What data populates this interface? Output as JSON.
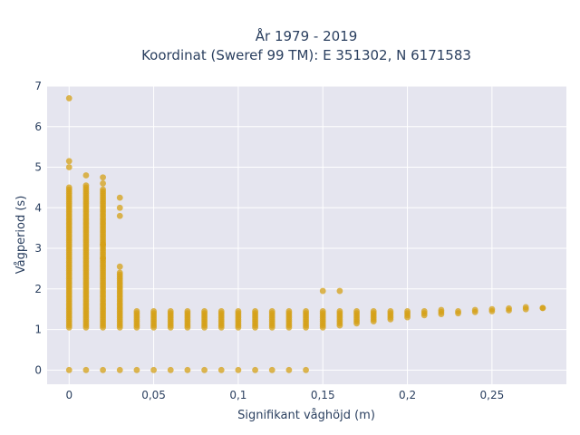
{
  "chart_data": {
    "type": "scatter",
    "title": "År 1979 - 2019",
    "subtitle": "Koordinat (Sweref 99 TM): E 351302, N 6171583",
    "xlabel": "Signifikant våghöjd (m)",
    "ylabel": "Vågperiod (s)",
    "xlim": [
      -0.013,
      0.294
    ],
    "ylim": [
      -0.35,
      7.0
    ],
    "xticks": [
      0,
      0.05,
      0.1,
      0.15,
      0.2,
      0.25
    ],
    "xtick_labels": [
      "0",
      "0,05",
      "0,1",
      "0,15",
      "0,2",
      "0,25"
    ],
    "yticks": [
      0,
      1,
      2,
      3,
      4,
      5,
      6,
      7
    ],
    "ytick_labels": [
      "0",
      "1",
      "2",
      "3",
      "4",
      "5",
      "6",
      "7"
    ],
    "grid": true,
    "legend": "none",
    "colors": {
      "marker": "#D4A017",
      "plot_bg": "#E5E5EF",
      "grid": "#ffffff"
    },
    "columns": [
      {
        "x": 0.0,
        "ymin": 1.05,
        "ymax": 4.45,
        "zero": true,
        "outliers": [
          4.5,
          5.0,
          5.15,
          6.7
        ]
      },
      {
        "x": 0.01,
        "ymin": 1.05,
        "ymax": 4.55,
        "zero": true,
        "outliers": [
          4.8
        ]
      },
      {
        "x": 0.02,
        "ymin": 1.05,
        "ymax": 4.45,
        "zero": true,
        "outliers": [
          4.6,
          4.75,
          2.75,
          3.1
        ]
      },
      {
        "x": 0.03,
        "ymin": 1.05,
        "ymax": 2.4,
        "zero": true,
        "outliers": [
          2.55,
          3.8,
          4.0,
          4.25
        ]
      },
      {
        "x": 0.04,
        "ymin": 1.05,
        "ymax": 1.45,
        "zero": true,
        "outliers": []
      },
      {
        "x": 0.05,
        "ymin": 1.05,
        "ymax": 1.45,
        "zero": true,
        "outliers": []
      },
      {
        "x": 0.06,
        "ymin": 1.05,
        "ymax": 1.45,
        "zero": true,
        "outliers": []
      },
      {
        "x": 0.07,
        "ymin": 1.05,
        "ymax": 1.45,
        "zero": true,
        "outliers": []
      },
      {
        "x": 0.08,
        "ymin": 1.05,
        "ymax": 1.45,
        "zero": true,
        "outliers": []
      },
      {
        "x": 0.09,
        "ymin": 1.05,
        "ymax": 1.45,
        "zero": true,
        "outliers": []
      },
      {
        "x": 0.1,
        "ymin": 1.05,
        "ymax": 1.45,
        "zero": true,
        "outliers": []
      },
      {
        "x": 0.11,
        "ymin": 1.05,
        "ymax": 1.45,
        "zero": true,
        "outliers": []
      },
      {
        "x": 0.12,
        "ymin": 1.05,
        "ymax": 1.45,
        "zero": true,
        "outliers": []
      },
      {
        "x": 0.13,
        "ymin": 1.05,
        "ymax": 1.45,
        "zero": true,
        "outliers": []
      },
      {
        "x": 0.14,
        "ymin": 1.05,
        "ymax": 1.45,
        "zero": true,
        "outliers": []
      },
      {
        "x": 0.15,
        "ymin": 1.05,
        "ymax": 1.45,
        "zero": false,
        "outliers": [
          1.95
        ]
      },
      {
        "x": 0.16,
        "ymin": 1.1,
        "ymax": 1.45,
        "zero": false,
        "outliers": [
          1.95
        ]
      },
      {
        "x": 0.17,
        "ymin": 1.15,
        "ymax": 1.45,
        "zero": false,
        "outliers": []
      },
      {
        "x": 0.18,
        "ymin": 1.2,
        "ymax": 1.45,
        "zero": false,
        "outliers": []
      },
      {
        "x": 0.19,
        "ymin": 1.25,
        "ymax": 1.45,
        "zero": false,
        "outliers": []
      },
      {
        "x": 0.2,
        "ymin": 1.3,
        "ymax": 1.45,
        "zero": false,
        "outliers": []
      },
      {
        "x": 0.21,
        "ymin": 1.35,
        "ymax": 1.45,
        "zero": false,
        "outliers": []
      },
      {
        "x": 0.22,
        "ymin": 1.38,
        "ymax": 1.48,
        "zero": false,
        "outliers": []
      },
      {
        "x": 0.23,
        "ymin": 1.4,
        "ymax": 1.48,
        "zero": false,
        "outliers": []
      },
      {
        "x": 0.24,
        "ymin": 1.43,
        "ymax": 1.5,
        "zero": false,
        "outliers": []
      },
      {
        "x": 0.25,
        "ymin": 1.45,
        "ymax": 1.52,
        "zero": false,
        "outliers": []
      },
      {
        "x": 0.26,
        "ymin": 1.47,
        "ymax": 1.53,
        "zero": false,
        "outliers": []
      },
      {
        "x": 0.27,
        "ymin": 1.5,
        "ymax": 1.55,
        "zero": false,
        "outliers": []
      },
      {
        "x": 0.28,
        "ymin": 1.53,
        "ymax": 1.53,
        "zero": false,
        "outliers": []
      }
    ]
  }
}
